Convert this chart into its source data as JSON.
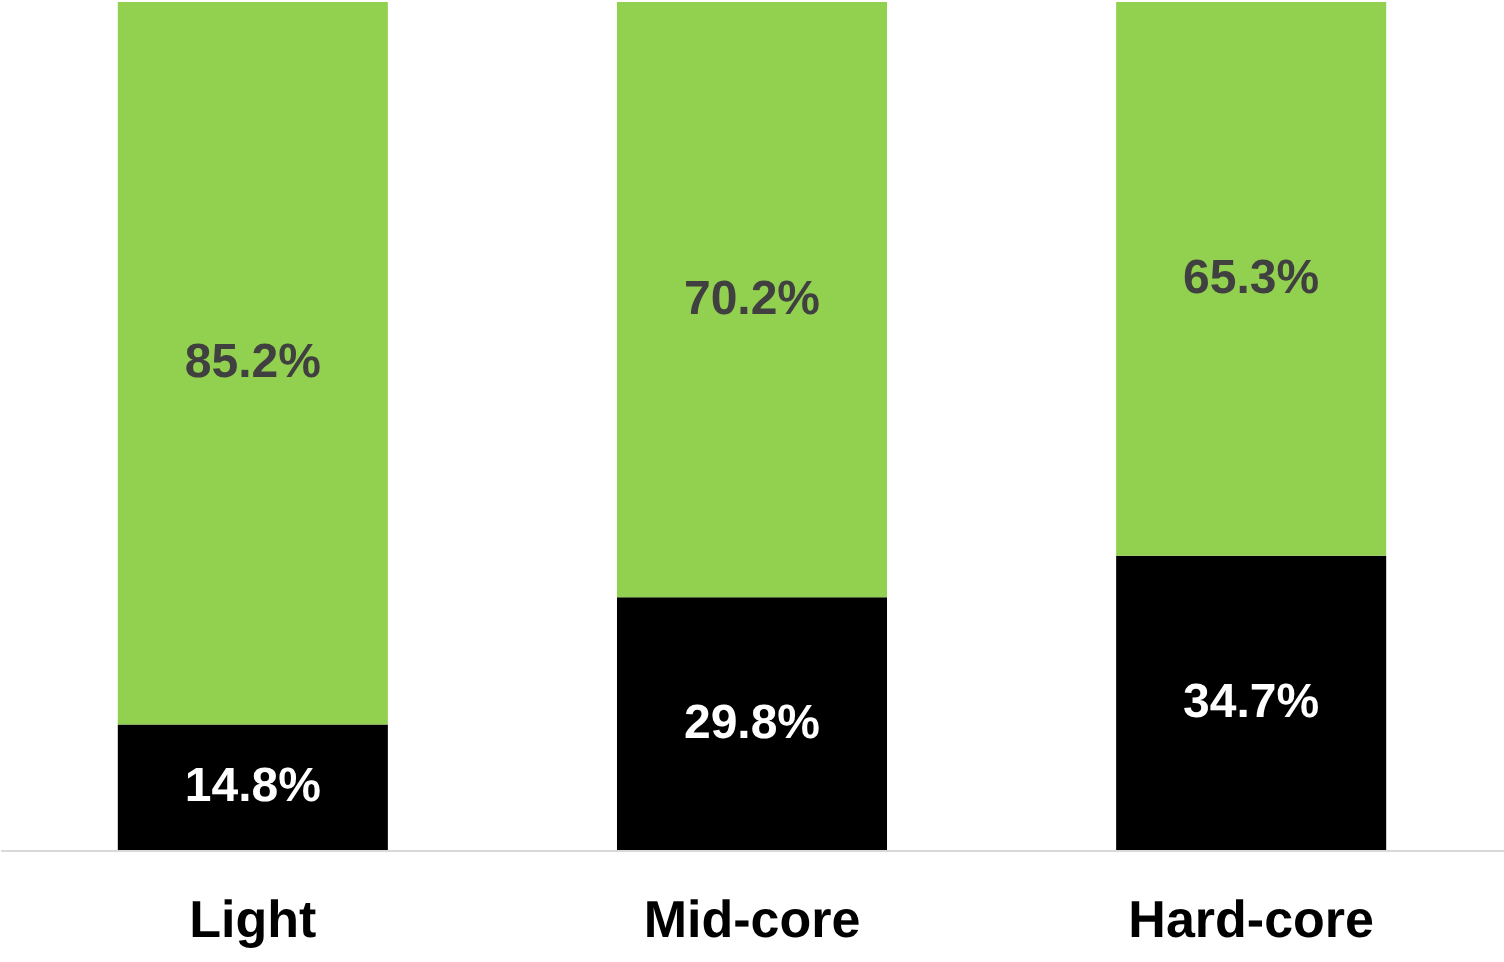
{
  "chart_data": {
    "type": "bar",
    "stacked": true,
    "categories": [
      "Light",
      "Mid-core",
      "Hard-core"
    ],
    "series": [
      {
        "color": "#000000",
        "values": [
          14.8,
          29.8,
          34.7
        ],
        "value_labels": [
          "14.8%",
          "29.8%",
          "34.7%"
        ]
      },
      {
        "color": "#92d050",
        "values": [
          85.2,
          70.2,
          65.3
        ],
        "value_labels": [
          "85.2%",
          "70.2%",
          "65.3%"
        ]
      }
    ],
    "tick_labels": "x"
  }
}
